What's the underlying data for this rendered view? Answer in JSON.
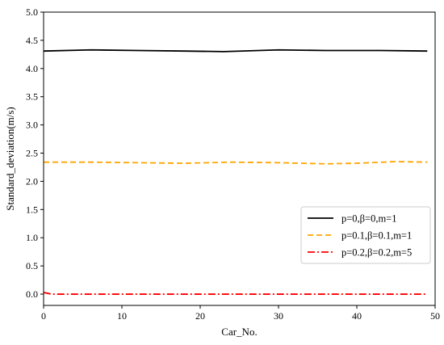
{
  "chart_data": {
    "type": "line",
    "title": "",
    "xlabel": "Car_No.",
    "ylabel": "Standard_deviation(m/s)",
    "xlim": [
      0,
      50
    ],
    "ylim": [
      -0.2,
      5.0
    ],
    "xticks": [
      0,
      10,
      20,
      30,
      40,
      50
    ],
    "yticks": [
      0.0,
      0.5,
      1.0,
      1.5,
      2.0,
      2.5,
      3.0,
      3.5,
      4.0,
      4.5,
      5.0
    ],
    "ytick_labels": [
      "0.0",
      "0.5",
      "1.0",
      "1.5",
      "2.0",
      "2.5",
      "3.0",
      "3.5",
      "4.0",
      "4.5",
      "5.0"
    ],
    "grid": false,
    "legend_position": "center-right",
    "series": [
      {
        "name": "p=0,β=0,m=1",
        "color": "#000000",
        "style": "solid",
        "x": [
          0,
          6,
          12,
          18,
          23,
          30,
          36,
          43,
          49
        ],
        "values": [
          4.31,
          4.33,
          4.32,
          4.31,
          4.3,
          4.33,
          4.32,
          4.32,
          4.31
        ]
      },
      {
        "name": "p=0.1,β=0.1,m=1",
        "color": "#FFA500",
        "style": "dashed",
        "x": [
          0,
          6,
          12,
          18,
          24,
          30,
          36,
          40,
          45,
          49
        ],
        "values": [
          2.34,
          2.34,
          2.33,
          2.32,
          2.34,
          2.33,
          2.31,
          2.32,
          2.35,
          2.34
        ]
      },
      {
        "name": "p=0.2,β=0.2,m=5",
        "color": "#FF0000",
        "style": "dashdot",
        "x": [
          0,
          1,
          5,
          10,
          20,
          30,
          40,
          49
        ],
        "values": [
          0.03,
          0.0,
          0.0,
          0.0,
          0.0,
          0.0,
          0.0,
          0.0
        ]
      }
    ]
  }
}
